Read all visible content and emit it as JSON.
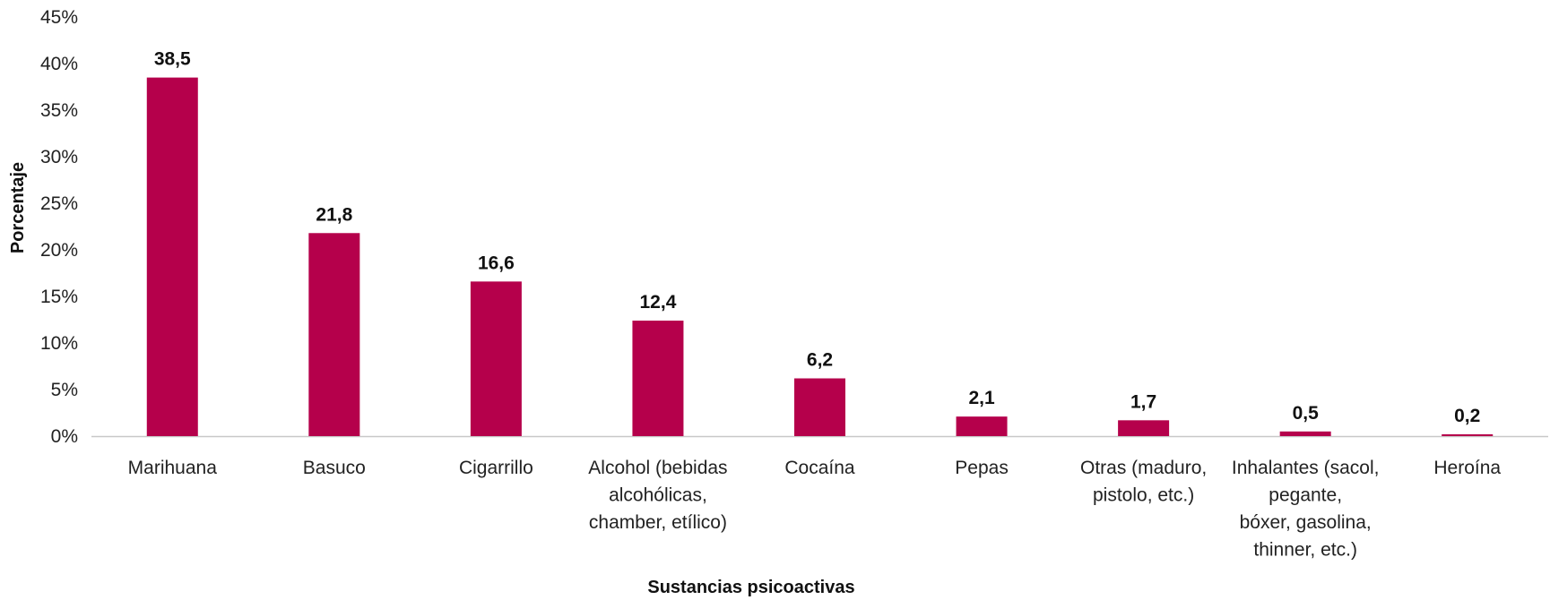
{
  "chart_data": {
    "type": "bar",
    "xlabel": "Sustancias psicoactivas",
    "ylabel": "Porcentaje",
    "ylim": [
      0,
      45
    ],
    "yticks": [
      "0%",
      "5%",
      "10%",
      "15%",
      "20%",
      "25%",
      "30%",
      "35%",
      "40%",
      "45%"
    ],
    "grid": false,
    "categories": [
      [
        "Marihuana"
      ],
      [
        "Basuco"
      ],
      [
        "Cigarrillo"
      ],
      [
        "Alcohol (bebidas",
        "alcohólicas,",
        "chamber, etílico)"
      ],
      [
        "Cocaína"
      ],
      [
        "Pepas"
      ],
      [
        "Otras (maduro,",
        "pistolo, etc.)"
      ],
      [
        "Inhalantes (sacol,",
        "pegante,",
        "bóxer, gasolina,",
        "thinner, etc.)"
      ],
      [
        "Heroína"
      ]
    ],
    "values": [
      38.5,
      21.8,
      16.6,
      12.4,
      6.2,
      2.1,
      1.7,
      0.5,
      0.2
    ],
    "value_labels": [
      "38,5",
      "21,8",
      "16,6",
      "12,4",
      "6,2",
      "2,1",
      "1,7",
      "0,5",
      "0,2"
    ],
    "bar_color": "#b5004b"
  }
}
